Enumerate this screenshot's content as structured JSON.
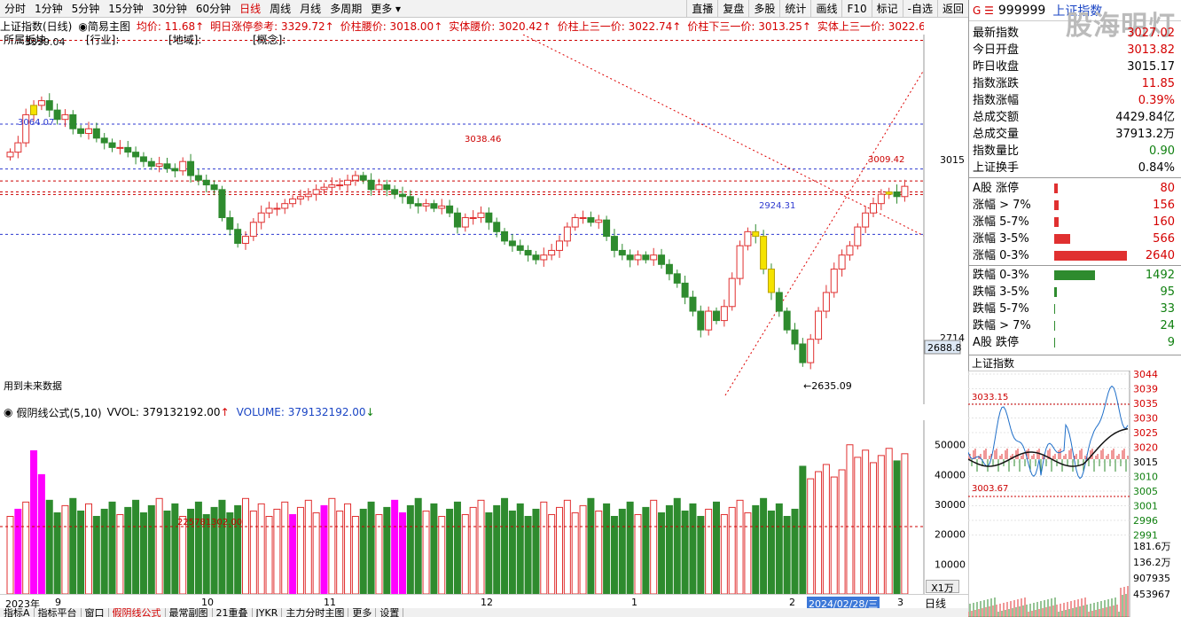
{
  "toolbar": {
    "periods": [
      "分时",
      "1分钟",
      "5分钟",
      "15分钟",
      "30分钟",
      "60分钟",
      "日线",
      "周线",
      "月线",
      "多周期",
      "更多"
    ],
    "active_period": "日线",
    "right_buttons": [
      "直播",
      "复盘",
      "多股",
      "统计",
      "画线",
      "F10",
      "标记",
      "-自选",
      "返回"
    ]
  },
  "info": {
    "title": "上证指数(日线)",
    "main_chart": "简易主图",
    "avg": "均价: 11.68",
    "limit_ref": "明日涨停参考: 3329.72",
    "waist": "价柱腰价: 3018.00",
    "entity_waist": "实体腰价: 3020.42",
    "upper_third": "价柱上三一价: 3022.74",
    "lower_third": "价柱下三一价: 3013.25",
    "entity_upper": "实体上三一价: 3022.6"
  },
  "main_overlay": {
    "tags": [
      "所属板块",
      "[行业]:",
      "[地域]:",
      "[概念]:"
    ],
    "top_price": "3339.04",
    "hint": "用到未来数据",
    "labels": {
      "p3064": "3064.07",
      "p3038": "3038.46",
      "p2924": "2924.31",
      "p2635": "2635.09",
      "p3009": "3009.42"
    },
    "axis": {
      "p3015": "3015",
      "p2714": "2714",
      "p2688": "2688.8"
    }
  },
  "volume": {
    "formula": "假阴线公式(5,10)",
    "vvol": "VVOL: 379132192.00",
    "volume": "VOLUME: 379132192.00",
    "avg_label": "225781302.00",
    "axis": [
      "50000",
      "40000",
      "30000",
      "20000",
      "10000"
    ],
    "unit": "X1万"
  },
  "x_axis": {
    "labels": [
      "2023年",
      "9",
      "10",
      "11",
      "12",
      "1",
      "2",
      "3"
    ],
    "date_box": "2024/02/28/三",
    "right_label": "日线"
  },
  "bottom_tabs": [
    "指标A",
    "指标平台",
    "窗口",
    "假阴线公式",
    "最常副图",
    "21重叠",
    "JYKR",
    "主力分时主图",
    "更多",
    "设置"
  ],
  "right_panel": {
    "code": "999999",
    "name": "上证指数",
    "watermark": "股海明灯",
    "stats": [
      {
        "label": "最新指数",
        "value": "3027.02",
        "color": "red"
      },
      {
        "label": "今日开盘",
        "value": "3013.82",
        "color": "red"
      },
      {
        "label": "昨日收盘",
        "value": "3015.17",
        "color": ""
      },
      {
        "label": "指数涨跌",
        "value": "11.85",
        "color": "red"
      },
      {
        "label": "指数涨幅",
        "value": "0.39%",
        "color": "red"
      },
      {
        "label": "总成交额",
        "value": "4429.84亿",
        "color": ""
      },
      {
        "label": "总成交量",
        "value": "37913.2万",
        "color": ""
      },
      {
        "label": "指数量比",
        "value": "0.90",
        "color": "green"
      },
      {
        "label": "上证换手",
        "value": "0.84%",
        "color": ""
      }
    ],
    "breadth": [
      {
        "label": "A股 涨停",
        "value": "80",
        "color": "red",
        "bar": 4
      },
      {
        "label": "涨幅 > 7%",
        "value": "156",
        "color": "red",
        "bar": 5
      },
      {
        "label": "涨幅 5-7%",
        "value": "160",
        "color": "red",
        "bar": 5
      },
      {
        "label": "涨幅 3-5%",
        "value": "566",
        "color": "red",
        "bar": 18
      },
      {
        "label": "涨幅 0-3%",
        "value": "2640",
        "color": "red",
        "bar": 82
      },
      {
        "label": "跌幅 0-3%",
        "value": "1492",
        "color": "green",
        "bar": 46
      },
      {
        "label": "跌幅 3-5%",
        "value": "95",
        "color": "green",
        "bar": 3
      },
      {
        "label": "跌幅 5-7%",
        "value": "33",
        "color": "green",
        "bar": 1
      },
      {
        "label": "跌幅 > 7%",
        "value": "24",
        "color": "green",
        "bar": 1
      },
      {
        "label": "A股 跌停",
        "value": "9",
        "color": "green",
        "bar": 1
      }
    ],
    "mini_title": "上证指数",
    "mini_high": "3033.15",
    "mini_low": "3003.67",
    "mini_axis": [
      "3044",
      "3039",
      "3035",
      "3030",
      "3025",
      "3020",
      "3015",
      "3010",
      "3005",
      "3001",
      "2996",
      "2991"
    ],
    "mini_vol_axis": [
      "181.6万",
      "136.2万",
      "907935",
      "453967"
    ]
  },
  "colors": {
    "up": "#e03030",
    "down": "#2e8b2e",
    "yellow": "#f5e300",
    "magenta": "#ff00ff",
    "accent": "#d40000",
    "blue": "#1a45c4"
  }
}
